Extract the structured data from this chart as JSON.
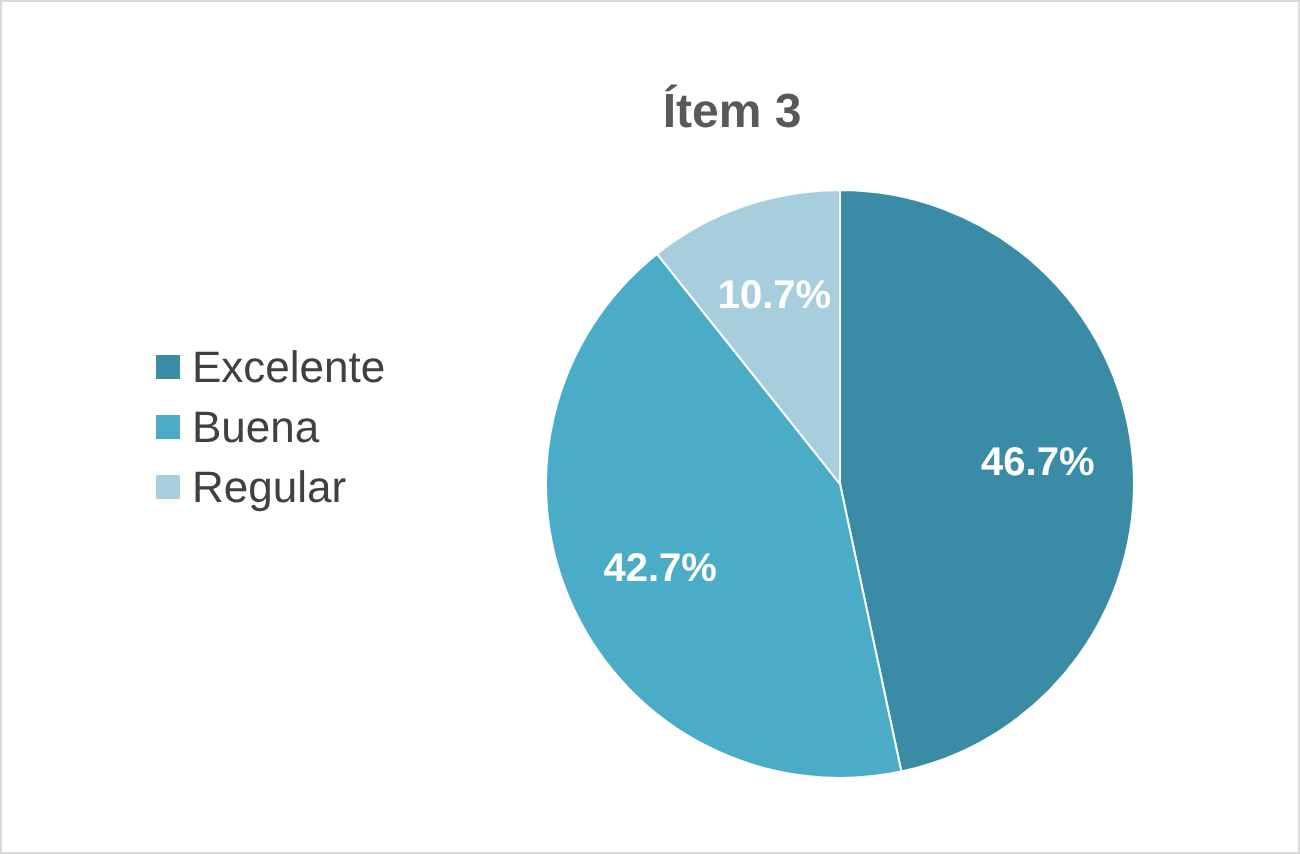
{
  "chart_data": {
    "type": "pie",
    "title": "Ítem 3",
    "categories": [
      "Excelente",
      "Buena",
      "Regular"
    ],
    "values": [
      46.7,
      42.7,
      10.7
    ],
    "colors": [
      "#3a8ca6",
      "#4aacc6",
      "#a6cedc"
    ],
    "value_labels": [
      "46.7%",
      "42.7%",
      "10.7%"
    ],
    "legend": "left"
  }
}
